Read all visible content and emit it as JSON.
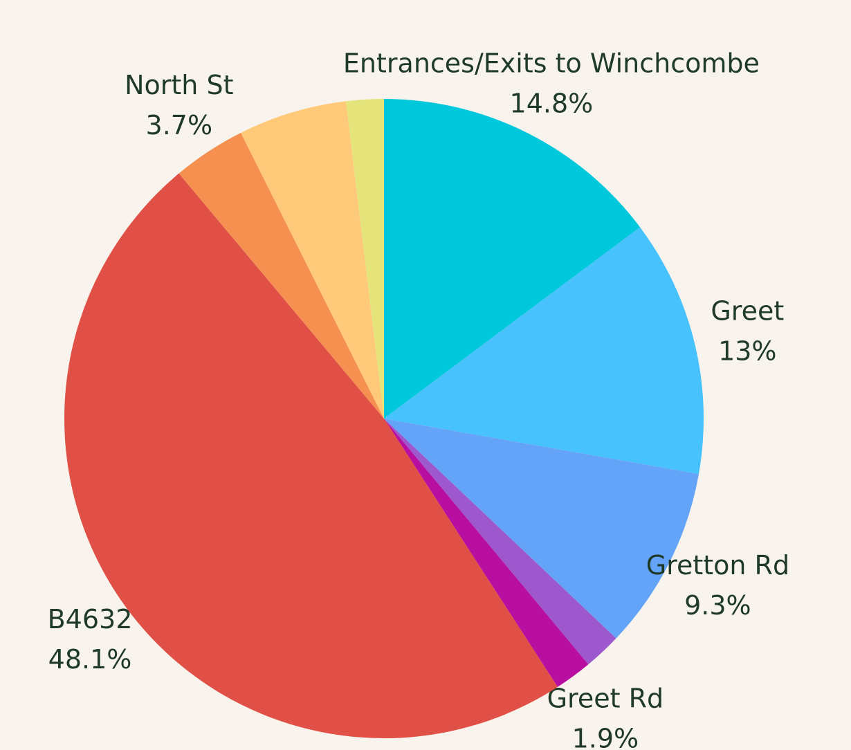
{
  "chart_data": {
    "type": "pie",
    "categories": [
      "Entrances/Exits to Winchcombe",
      "Greet",
      "Gretton Rd",
      null,
      "Greet Rd",
      "B4632",
      "North St",
      null,
      null
    ],
    "values": [
      14.8,
      13,
      9.3,
      1.9,
      1.9,
      48.1,
      3.7,
      5.5,
      1.9
    ],
    "value_labels": [
      "14.8%",
      "13%",
      "9.3%",
      null,
      "1.9%",
      "48.1%",
      "3.7%",
      null,
      null
    ],
    "colors": [
      "#00c8dc",
      "#48c2fc",
      "#64a4f8",
      "#9c58cc",
      "#b80fa0",
      "#e05046",
      "#f59050",
      "#ffc97a",
      "#e5e47a"
    ]
  }
}
